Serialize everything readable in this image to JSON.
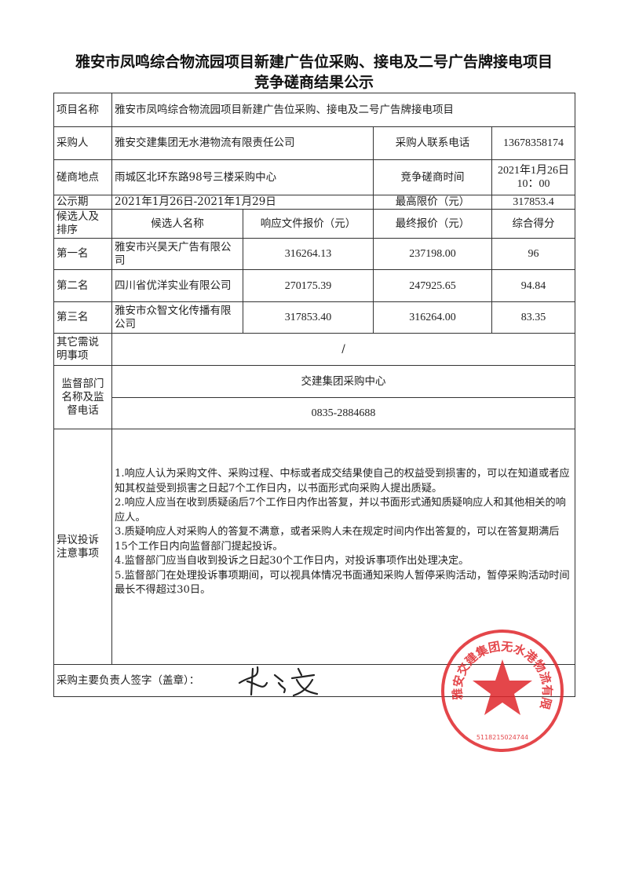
{
  "title": {
    "line1": "雅安市凤鸣综合物流园项目新建广告位采购、接电及二号广告牌接电项目",
    "line2": "竞争磋商结果公示"
  },
  "info": {
    "project_label": "项目名称",
    "project_value": "雅安市凤鸣综合物流园项目新建广告位采购、接电及二号广告牌接电项目",
    "buyer_label": "采购人",
    "buyer_value": "雅安交建集团无水港物流有限责任公司",
    "buyer_phone_label": "采购人联系电话",
    "buyer_phone_value": "13678358174",
    "location_label": "磋商地点",
    "location_value": "雨城区北环东路98号三楼采购中心",
    "time_label": "竞争磋商时间",
    "time_value_line1": "2021年1月26日",
    "time_value_line2": "10：00",
    "period_label": "公示期",
    "period_value": "2021年1月26日-2021年1月29日",
    "max_price_label": "最高限价（元）",
    "max_price_value": "317853.4"
  },
  "candidates": {
    "headers": [
      "候选人及排序",
      "候选人名称",
      "响应文件报价（元）",
      "最终报价（元）",
      "综合得分"
    ],
    "rows": [
      {
        "rank": "第一名",
        "name": "雅安市兴昊天广告有限公司",
        "bid": "316264.13",
        "final": "237198.00",
        "score": "96"
      },
      {
        "rank": "第二名",
        "name": "四川省优洋实业有限公司",
        "bid": "270175.39",
        "final": "247925.65",
        "score": "94.84"
      },
      {
        "rank": "第三名",
        "name": "雅安市众智文化传播有限公司",
        "bid": "317853.40",
        "final": "316264.00",
        "score": "83.35"
      }
    ]
  },
  "other": {
    "label": "其它需说明事项",
    "value": "/"
  },
  "supervision": {
    "label": "监督部门名称及监督电话",
    "name": "交建集团采购中心",
    "phone": "0835-2884688"
  },
  "complaints": {
    "label": "异议投诉注意事项",
    "items": [
      "1.响应人认为采购文件、采购过程、中标或者成交结果使自己的权益受到损害的，可以在知道或者应知其权益受到损害之日起7个工作日内，以书面形式向采购人提出质疑。",
      "2.响应人应当在收到质疑函后7个工作日内作出答复，并以书面形式通知质疑响应人和其他相关的响应人。",
      "3.质疑响应人对采购人的答复不满意，或者采购人未在规定时间内作出答复的，可以在答复期满后15个工作日内向监督部门提起投诉。",
      "4.监督部门应当自收到投诉之日起30个工作日内，对投诉事项作出处理决定。",
      "5.监督部门在处理投诉事项期间，可以视具体情况书面通知采购人暂停采购活动，暂停采购活动时间最长不得超过30日。"
    ]
  },
  "signature": {
    "label": "采购主要负责人签字（盖章）："
  },
  "seal": {
    "text": "雅安交建集团无水港物流有限责任公司",
    "number": "5118215024744",
    "color": "#e0262b"
  }
}
